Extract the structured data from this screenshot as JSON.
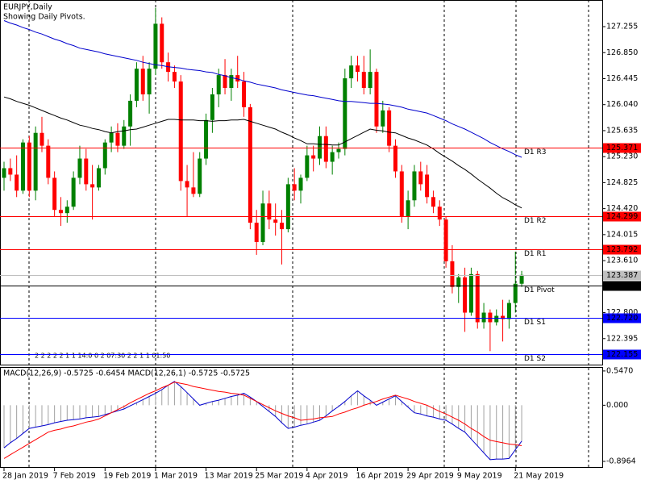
{
  "chart_data": {
    "type": "candlestick",
    "title": "EURJPY,Daily",
    "subtitle": "Showing Daily Pivots.",
    "annotation": "2 2 2 2 2 1 1 14:0 0 2 07:30 2 2 1 1 01:50",
    "categories": [
      "28 Jan 2019",
      null,
      null,
      null,
      null,
      null,
      null,
      null,
      "7 Feb 2019",
      null,
      null,
      null,
      null,
      null,
      null,
      null,
      "19 Feb 2019",
      null,
      null,
      null,
      null,
      null,
      null,
      null,
      "1 Mar 2019",
      null,
      null,
      null,
      null,
      null,
      null,
      null,
      "13 Mar 2019",
      null,
      null,
      null,
      null,
      null,
      null,
      null,
      "25 Mar 2019",
      null,
      null,
      null,
      null,
      null,
      null,
      null,
      "4 Apr 2019",
      null,
      null,
      null,
      null,
      null,
      null,
      null,
      "16 Apr 2019",
      null,
      null,
      null,
      null,
      null,
      null,
      null,
      "29 Apr 2019",
      null,
      null,
      null,
      null,
      null,
      null,
      null,
      "9 May 2019",
      null,
      null,
      null,
      null,
      null,
      null,
      null,
      null,
      "21 May 2019",
      null
    ],
    "open": [
      124.9,
      125.05,
      124.95,
      124.7,
      125.45,
      124.7,
      125.6,
      125.4,
      124.9,
      124.4,
      124.35,
      124.45,
      124.9,
      125.2,
      124.8,
      124.75,
      125.05,
      125.45,
      125.6,
      125.4,
      125.7,
      126.1,
      126.6,
      126.2,
      126.6,
      127.3,
      126.7,
      126.55,
      126.4,
      124.85,
      124.75,
      124.65,
      125.2,
      125.8,
      126.2,
      126.5,
      126.3,
      126.5,
      126.4,
      126.0,
      124.2,
      123.9,
      124.5,
      124.25,
      124.2,
      124.1,
      124.8,
      124.7,
      124.9,
      125.25,
      125.2,
      125.55,
      125.15,
      125.3,
      125.35,
      126.45,
      126.65,
      126.55,
      126.3,
      126.55,
      125.7,
      125.95,
      125.4,
      125.0,
      124.3,
      124.55,
      125.0,
      124.95,
      124.6,
      124.45,
      124.25,
      123.6,
      123.2,
      123.35,
      122.8,
      123.4,
      122.65,
      122.8,
      122.65,
      122.75,
      122.7,
      122.95,
      123.25
    ],
    "high": [
      125.15,
      125.2,
      125.25,
      125.5,
      125.55,
      125.7,
      125.85,
      125.5,
      125.0,
      124.6,
      124.55,
      125.0,
      125.4,
      125.35,
      125.1,
      125.1,
      125.5,
      125.7,
      125.75,
      125.8,
      126.2,
      126.7,
      126.8,
      126.7,
      127.55,
      127.4,
      126.85,
      126.65,
      126.5,
      125.1,
      125.3,
      125.3,
      125.9,
      126.3,
      126.6,
      126.75,
      126.6,
      126.8,
      126.55,
      126.05,
      124.4,
      124.7,
      124.7,
      124.5,
      124.4,
      124.9,
      125.05,
      124.95,
      125.4,
      125.4,
      125.7,
      125.7,
      125.4,
      125.45,
      126.6,
      126.8,
      126.8,
      126.8,
      126.9,
      126.6,
      126.1,
      126.0,
      125.5,
      125.1,
      124.7,
      125.1,
      125.15,
      125.1,
      124.7,
      124.55,
      124.3,
      123.85,
      123.4,
      123.5,
      123.5,
      123.45,
      122.95,
      122.85,
      122.85,
      123.0,
      123.0,
      123.75,
      123.45
    ],
    "low": [
      124.7,
      124.85,
      124.6,
      124.65,
      124.6,
      124.55,
      125.3,
      124.8,
      124.3,
      124.15,
      124.2,
      124.4,
      124.8,
      124.7,
      124.25,
      124.7,
      124.95,
      125.3,
      125.3,
      125.35,
      125.4,
      126.0,
      126.1,
      125.9,
      126.5,
      126.6,
      126.4,
      126.3,
      124.7,
      124.3,
      124.6,
      124.6,
      125.1,
      125.6,
      126.0,
      126.2,
      126.1,
      126.3,
      125.85,
      124.1,
      123.7,
      123.85,
      124.1,
      124.0,
      123.55,
      124.05,
      124.55,
      124.5,
      124.85,
      125.0,
      125.1,
      125.05,
      124.95,
      125.2,
      125.25,
      126.3,
      126.4,
      126.2,
      126.2,
      125.6,
      125.6,
      125.3,
      124.9,
      124.2,
      124.1,
      124.45,
      124.7,
      124.5,
      124.35,
      124.15,
      123.5,
      123.1,
      122.95,
      122.5,
      122.75,
      122.55,
      122.55,
      122.2,
      122.6,
      122.35,
      122.55,
      122.8,
      123.2
    ],
    "close": [
      125.05,
      124.95,
      124.7,
      125.45,
      124.7,
      125.6,
      125.4,
      124.9,
      124.4,
      124.35,
      124.45,
      124.9,
      125.2,
      124.8,
      124.75,
      125.05,
      125.45,
      125.6,
      125.4,
      125.7,
      126.1,
      126.6,
      126.2,
      126.6,
      127.3,
      126.7,
      126.55,
      126.4,
      124.85,
      124.75,
      124.65,
      125.2,
      125.8,
      126.2,
      126.5,
      126.3,
      126.5,
      126.4,
      126.0,
      124.2,
      123.9,
      124.5,
      124.25,
      124.2,
      124.1,
      124.8,
      124.7,
      124.9,
      125.25,
      125.2,
      125.55,
      125.15,
      125.3,
      125.35,
      126.45,
      126.65,
      126.55,
      126.3,
      126.55,
      125.7,
      125.95,
      125.4,
      125.0,
      124.3,
      124.55,
      125.0,
      124.8,
      124.6,
      124.45,
      124.25,
      123.6,
      123.2,
      123.35,
      122.8,
      123.4,
      122.65,
      122.8,
      122.65,
      122.75,
      122.7,
      122.95,
      123.25,
      123.387
    ],
    "up_color": "#008000",
    "down_color": "#ff0000",
    "moving_averages": [
      {
        "color": "#0000cd",
        "values": [
          127.35,
          127.31,
          127.28,
          127.24,
          127.21,
          127.17,
          127.14,
          127.1,
          127.06,
          127.03,
          126.99,
          126.96,
          126.92,
          126.9,
          126.88,
          126.86,
          126.83,
          126.81,
          126.79,
          126.77,
          126.75,
          126.73,
          126.7,
          126.68,
          126.66,
          126.65,
          126.63,
          126.62,
          126.61,
          126.59,
          126.58,
          126.57,
          126.55,
          126.54,
          126.51,
          126.49,
          126.46,
          126.44,
          126.41,
          126.39,
          126.36,
          126.34,
          126.32,
          126.3,
          126.27,
          126.25,
          126.23,
          126.21,
          126.19,
          126.18,
          126.16,
          126.14,
          126.12,
          126.1,
          126.09,
          126.09,
          126.08,
          126.07,
          126.06,
          126.06,
          126.05,
          126.04,
          126.02,
          126.0,
          125.97,
          125.95,
          125.93,
          125.91,
          125.87,
          125.83,
          125.79,
          125.74,
          125.7,
          125.66,
          125.61,
          125.56,
          125.51,
          125.45,
          125.4,
          125.35,
          125.31,
          125.26,
          125.22
        ]
      },
      {
        "color": "#000000",
        "values": [
          126.16,
          126.13,
          126.09,
          126.06,
          126.03,
          125.99,
          125.95,
          125.91,
          125.87,
          125.83,
          125.8,
          125.76,
          125.72,
          125.7,
          125.67,
          125.65,
          125.62,
          125.6,
          125.62,
          125.63,
          125.65,
          125.66,
          125.69,
          125.72,
          125.75,
          125.78,
          125.81,
          125.81,
          125.8,
          125.8,
          125.8,
          125.79,
          125.79,
          125.78,
          125.79,
          125.79,
          125.8,
          125.8,
          125.81,
          125.78,
          125.75,
          125.72,
          125.69,
          125.66,
          125.61,
          125.57,
          125.52,
          125.48,
          125.43,
          125.43,
          125.42,
          125.42,
          125.41,
          125.41,
          125.46,
          125.51,
          125.56,
          125.61,
          125.66,
          125.64,
          125.63,
          125.61,
          125.6,
          125.56,
          125.52,
          125.49,
          125.45,
          125.41,
          125.35,
          125.28,
          125.22,
          125.16,
          125.09,
          125.03,
          124.96,
          124.88,
          124.81,
          124.74,
          124.66,
          124.59,
          124.54,
          124.48,
          124.43
        ]
      }
    ],
    "levels": [
      {
        "name": "D1 R3",
        "value": 125.371,
        "color": "#ff0000"
      },
      {
        "name": "D1 R2",
        "value": 124.299,
        "color": "#ff0000"
      },
      {
        "name": "D1 R1",
        "value": 123.792,
        "color": "#ff0000"
      },
      {
        "name": "D1 Pivot",
        "value": 123.227,
        "color": "#000000"
      },
      {
        "name": "D1 S1",
        "value": 122.72,
        "value_label": "122.720",
        "color": "#0000ff"
      },
      {
        "name": "D1 S2",
        "value": 122.155,
        "color": "#0000ff"
      }
    ],
    "last_price": {
      "value": 123.387,
      "color": "#c0c0c0"
    },
    "ylim": [
      121.99,
      127.67
    ],
    "yticks": [
      127.255,
      {
        "value": 126.85,
        "label": "126.850"
      },
      126.445,
      {
        "value": 126.04,
        "label": "126.040"
      },
      125.635,
      {
        "value": 125.23,
        "label": "125.230"
      },
      124.825,
      {
        "value": 124.42,
        "label": "124.420"
      },
      124.015,
      {
        "value": 123.61,
        "label": "123.610"
      },
      {
        "value": 122.8,
        "label": "122.800"
      },
      122.395
    ],
    "macd": {
      "title": "MACD(12,26,9) -0.5725 -0.6454 MACD(12,26,1) -0.5725 -0.5725",
      "histogram_color": "#a0a0a0",
      "series": [
        {
          "color": "#0000cd",
          "values": [
            -0.68,
            -0.6,
            -0.53,
            -0.45,
            -0.37,
            -0.35,
            -0.33,
            -0.31,
            -0.28,
            -0.26,
            -0.24,
            -0.23,
            -0.22,
            -0.2,
            -0.19,
            -0.18,
            -0.15,
            -0.12,
            -0.09,
            -0.06,
            -0.01,
            0.04,
            0.09,
            0.14,
            0.19,
            0.25,
            0.32,
            0.38,
            0.3,
            0.2,
            0.1,
            0.0,
            0.03,
            0.06,
            0.08,
            0.11,
            0.14,
            0.16,
            0.19,
            0.13,
            0.06,
            -0.02,
            -0.1,
            -0.18,
            -0.28,
            -0.37,
            -0.35,
            -0.32,
            -0.3,
            -0.27,
            -0.24,
            -0.17,
            -0.09,
            -0.02,
            0.06,
            0.15,
            0.23,
            0.15,
            0.08,
            0.0,
            0.05,
            0.1,
            0.15,
            0.06,
            -0.03,
            -0.12,
            -0.14,
            -0.17,
            -0.19,
            -0.22,
            -0.24,
            -0.3,
            -0.37,
            -0.43,
            -0.54,
            -0.65,
            -0.76,
            -0.87,
            -0.86,
            -0.86,
            -0.85,
            -0.71,
            -0.5725
          ]
        },
        {
          "color": "#ff0000",
          "values": [
            -0.85,
            -0.79,
            -0.73,
            -0.67,
            -0.61,
            -0.55,
            -0.49,
            -0.43,
            -0.4,
            -0.38,
            -0.35,
            -0.33,
            -0.3,
            -0.27,
            -0.25,
            -0.22,
            -0.17,
            -0.12,
            -0.07,
            -0.02,
            0.04,
            0.09,
            0.14,
            0.19,
            0.23,
            0.28,
            0.32,
            0.37,
            0.35,
            0.33,
            0.3,
            0.28,
            0.26,
            0.24,
            0.22,
            0.21,
            0.19,
            0.18,
            0.16,
            0.11,
            0.06,
            0.01,
            -0.04,
            -0.09,
            -0.13,
            -0.17,
            -0.2,
            -0.24,
            -0.23,
            -0.22,
            -0.2,
            -0.19,
            -0.18,
            -0.14,
            -0.11,
            -0.07,
            -0.04,
            0.0,
            0.03,
            0.06,
            0.1,
            0.13,
            0.16,
            0.13,
            0.1,
            0.06,
            0.03,
            0.0,
            -0.05,
            -0.1,
            -0.14,
            -0.19,
            -0.24,
            -0.3,
            -0.37,
            -0.43,
            -0.5,
            -0.56,
            -0.58,
            -0.6,
            -0.62,
            -0.63,
            -0.6454
          ]
        }
      ],
      "ylim": [
        -1.0,
        0.61
      ],
      "yticks": [
        {
          "value": 0.547,
          "label": "0.5470"
        },
        {
          "value": 0,
          "label": "0.000"
        },
        -0.8964
      ]
    }
  }
}
